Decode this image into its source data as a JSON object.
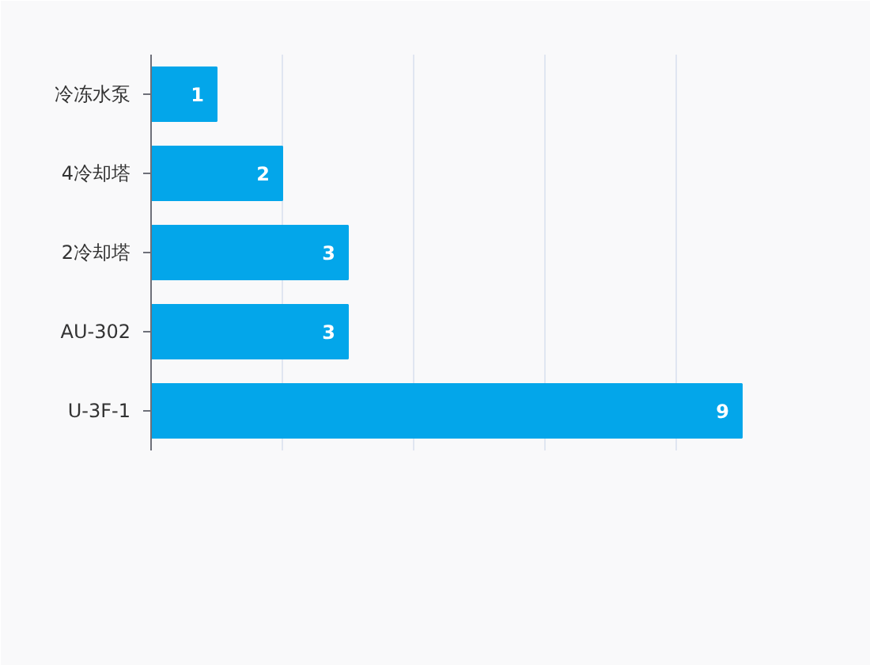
{
  "chart_data": {
    "type": "bar",
    "orientation": "horizontal",
    "categories": [
      "冷冻水泵",
      "4冷却塔",
      "2冷却塔",
      "AU-302",
      "U-3F-1"
    ],
    "values": [
      1,
      2,
      3,
      3,
      9
    ],
    "color": "#03a6ea",
    "xlim": [
      0,
      10
    ],
    "xticks": [
      {
        "value": 0,
        "label": null
      },
      {
        "value": 2,
        "label": null
      },
      {
        "value": 4,
        "label": null
      },
      {
        "value": 6,
        "label": null
      },
      {
        "value": 8,
        "label": null
      },
      {
        "value": 10,
        "label": null
      }
    ],
    "grid": "x",
    "data_labels": true,
    "tick_labels": "y"
  }
}
